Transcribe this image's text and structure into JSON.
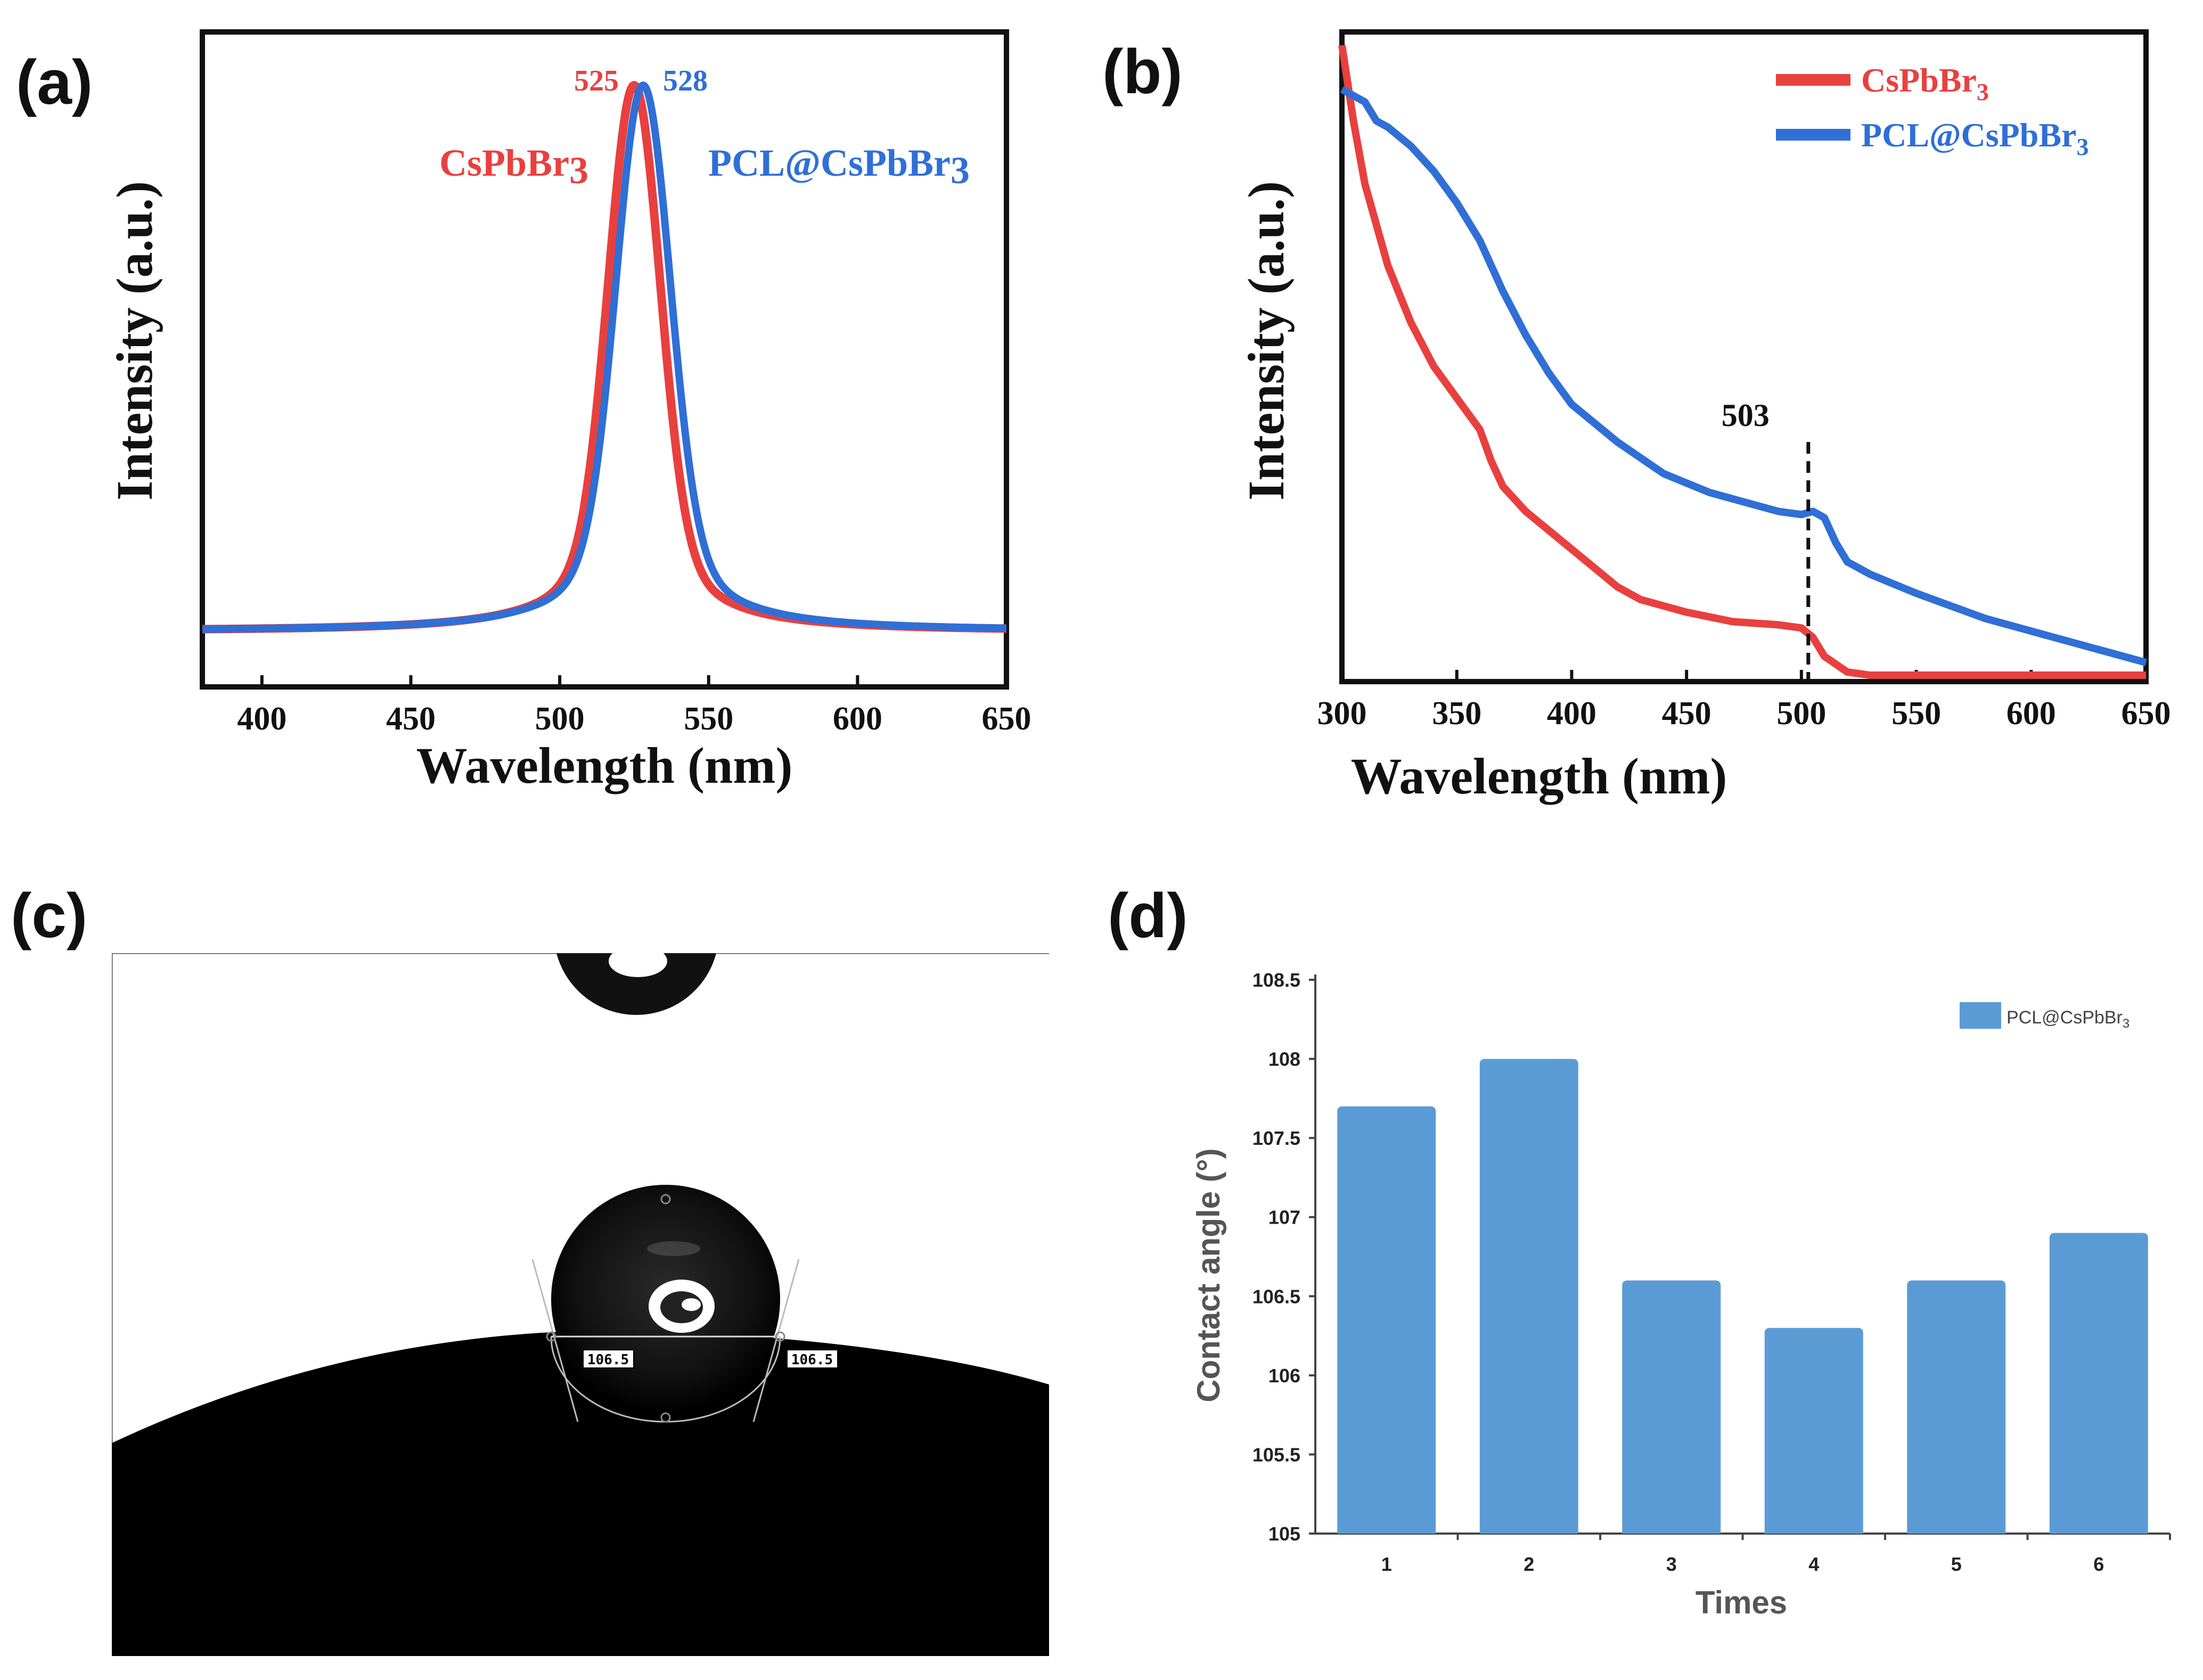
{
  "panel_labels": [
    "(a)",
    "(b)",
    "(c)",
    "(d)"
  ],
  "colors": {
    "red": "#e8403f",
    "blue": "#2f6fd6",
    "bar": "#5b9bd5"
  },
  "chart_data": [
    {
      "panel": "(a)",
      "type": "line",
      "xlabel": "Wavelength (nm)",
      "ylabel": "Intensity (a.u.)",
      "xlim": [
        380,
        650
      ],
      "ylim": [
        0,
        1
      ],
      "xticks": [
        400,
        450,
        500,
        550,
        600,
        650
      ],
      "series": [
        {
          "name": "CsPbBr",
          "sub": "3",
          "color": "#e8403f",
          "peak": 525,
          "peak_label": "525",
          "fwhm": 20,
          "baseline": 0.19
        },
        {
          "name": "PCL@CsPbBr",
          "sub": "3",
          "color": "#2f6fd6",
          "peak": 528,
          "peak_label": "528",
          "fwhm": 21,
          "baseline": 0.19
        }
      ]
    },
    {
      "panel": "(b)",
      "type": "line",
      "xlabel": "Wavelength (nm)",
      "ylabel": "Intensity (a.u.)",
      "xlim": [
        300,
        650
      ],
      "ylim": [
        0,
        1
      ],
      "xticks": [
        300,
        350,
        400,
        450,
        500,
        550,
        600,
        650
      ],
      "annotation": {
        "text": "503",
        "x": 503
      },
      "series": [
        {
          "name": "CsPbBr",
          "sub": "3",
          "color": "#e8403f",
          "x": [
            300,
            305,
            310,
            320,
            330,
            340,
            350,
            360,
            365,
            370,
            380,
            390,
            400,
            410,
            420,
            430,
            450,
            470,
            490,
            500,
            505,
            510,
            520,
            530,
            550,
            600,
            650
          ],
          "y": [
            1.0,
            0.88,
            0.78,
            0.65,
            0.56,
            0.49,
            0.44,
            0.39,
            0.34,
            0.3,
            0.26,
            0.23,
            0.2,
            0.17,
            0.14,
            0.12,
            0.1,
            0.085,
            0.08,
            0.075,
            0.06,
            0.03,
            0.005,
            0.0,
            0.0,
            0.0,
            0.0
          ]
        },
        {
          "name": "PCL@CsPbBr",
          "sub": "3",
          "color": "#2f6fd6",
          "x": [
            300,
            310,
            315,
            320,
            330,
            340,
            350,
            360,
            370,
            380,
            390,
            400,
            420,
            440,
            460,
            480,
            490,
            500,
            505,
            510,
            515,
            520,
            530,
            550,
            580,
            600,
            650
          ],
          "y": [
            0.93,
            0.91,
            0.88,
            0.87,
            0.84,
            0.8,
            0.75,
            0.69,
            0.61,
            0.54,
            0.48,
            0.43,
            0.37,
            0.32,
            0.29,
            0.27,
            0.26,
            0.255,
            0.26,
            0.25,
            0.21,
            0.18,
            0.16,
            0.13,
            0.09,
            0.07,
            0.02
          ]
        }
      ]
    },
    {
      "panel": "(d)",
      "type": "bar",
      "xlabel": "Times",
      "ylabel": "Contact angle (°)",
      "categories": [
        "1",
        "2",
        "3",
        "4",
        "5",
        "6"
      ],
      "values": [
        107.7,
        108.0,
        106.6,
        106.3,
        106.6,
        106.9
      ],
      "ylim": [
        105,
        108.5
      ],
      "yticks": [
        "105",
        "105.5",
        "106",
        "106.5",
        "107",
        "107.5",
        "108",
        "108.5"
      ],
      "legend": {
        "name": "PCL@CsPbBr",
        "sub": "3"
      }
    }
  ],
  "droplet_image": {
    "angle_left": "106.5",
    "angle_right": "106.5"
  }
}
